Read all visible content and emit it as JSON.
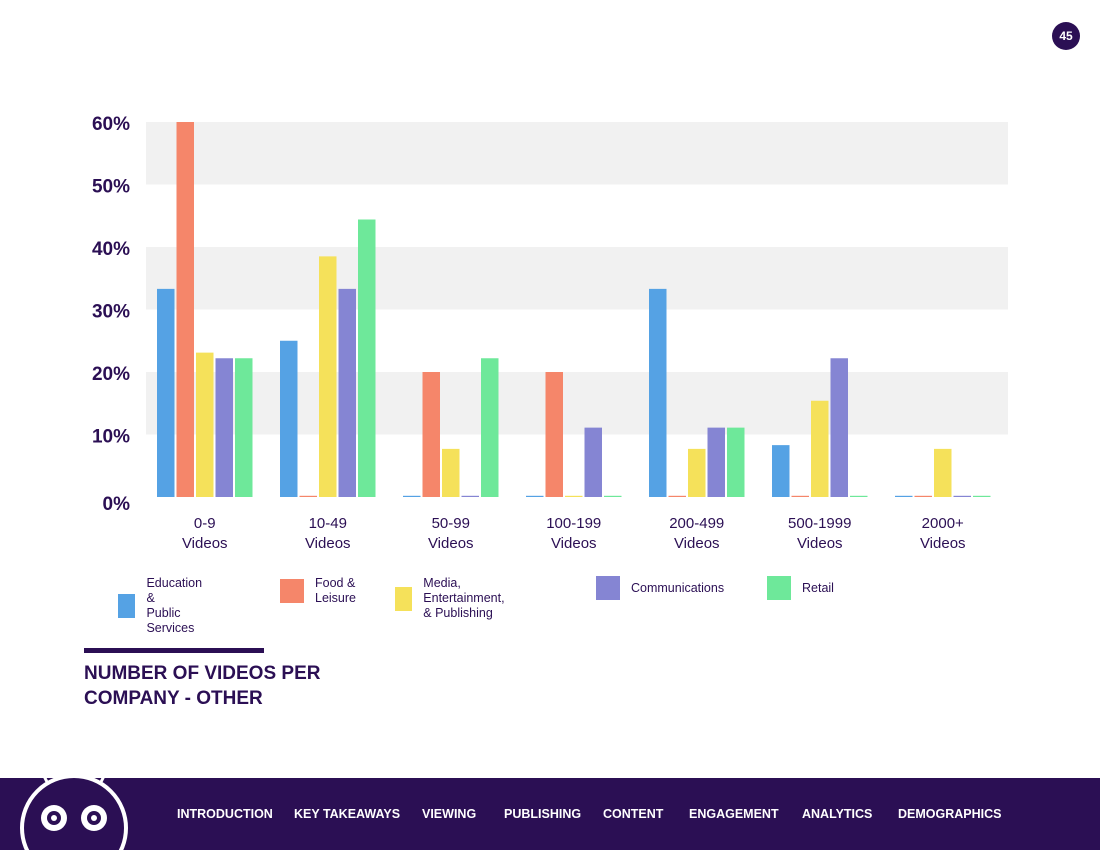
{
  "page_number": "45",
  "chart_data": {
    "type": "bar",
    "title": "NUMBER OF VIDEOS PER COMPANY - OTHER",
    "xlabel": "",
    "ylabel": "",
    "ylim": [
      0,
      60
    ],
    "yticks": [
      {
        "value": 0,
        "label": "0%"
      },
      {
        "value": 10,
        "label": "10%"
      },
      {
        "value": 20,
        "label": "20%"
      },
      {
        "value": 30,
        "label": "30%"
      },
      {
        "value": 40,
        "label": "40%"
      },
      {
        "value": 50,
        "label": "50%"
      },
      {
        "value": 60,
        "label": "60%"
      }
    ],
    "categories": [
      [
        "0-9",
        "Videos"
      ],
      [
        "10-49",
        "Videos"
      ],
      [
        "50-99",
        "Videos"
      ],
      [
        "100-199",
        "Videos"
      ],
      [
        "200-499",
        "Videos"
      ],
      [
        "500-1999",
        "Videos"
      ],
      [
        "2000+",
        "Videos"
      ]
    ],
    "series": [
      {
        "name": "Education & Public Services",
        "legend_lines": [
          "Education &",
          "Public Services"
        ],
        "color": "#55a2e4",
        "values": [
          33.3,
          25,
          0,
          0,
          33.3,
          8.3,
          0
        ]
      },
      {
        "name": "Food & Leisure",
        "legend_lines": [
          "Food &",
          "Leisure"
        ],
        "color": "#f5866a",
        "values": [
          60,
          0,
          20,
          20,
          0,
          0,
          0
        ]
      },
      {
        "name": "Media, Entertainment, & Publishing",
        "legend_lines": [
          "Media, Entertainment,",
          "& Publishing"
        ],
        "color": "#f5e15a",
        "values": [
          23.1,
          38.5,
          7.7,
          0,
          7.7,
          15.4,
          7.7
        ]
      },
      {
        "name": "Communications",
        "legend_lines": [
          "Communications"
        ],
        "color": "#8585d3",
        "values": [
          22.2,
          33.3,
          0,
          11.1,
          11.1,
          22.2,
          0
        ]
      },
      {
        "name": "Retail",
        "legend_lines": [
          "Retail"
        ],
        "color": "#6ee89a",
        "values": [
          22.2,
          44.4,
          22.2,
          0,
          11.1,
          0,
          0
        ]
      }
    ],
    "grid_band_color": "#f1f1f1",
    "legend_position": "bottom"
  },
  "footer": {
    "background": "#2b0f54",
    "nav": [
      "INTRODUCTION",
      "KEY TAKEAWAYS",
      "VIEWING",
      "PUBLISHING",
      "CONTENT",
      "ENGAGEMENT",
      "ANALYTICS",
      "DEMOGRAPHICS"
    ]
  }
}
